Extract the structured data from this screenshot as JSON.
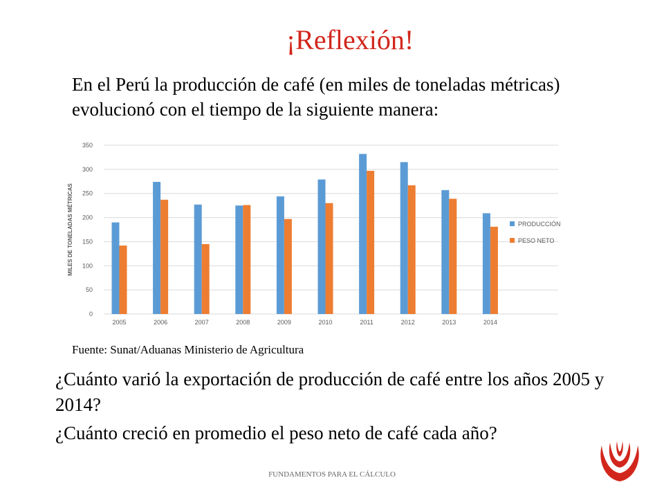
{
  "slide": {
    "title": "¡Reflexión!",
    "intro": "En el Perú la producción de café (en miles de toneladas métricas) evolucionó con el tiempo de la siguiente manera:",
    "source": "Fuente: Sunat/Aduanas Ministerio de Agricultura",
    "question1": "¿Cuánto varió la exportación de producción de café entre los años 2005 y 2014?",
    "question2": "¿Cuánto creció en promedio el peso neto de café cada año?",
    "footer": "FUNDAMENTOS PARA EL CÁLCULO"
  },
  "colors": {
    "title": "#d2261c",
    "produccion": "#5b9bd5",
    "peso_neto": "#ed7d31",
    "grid": "#d9d9d9",
    "logo": "#d2261c"
  },
  "chart_data": {
    "type": "bar",
    "categories": [
      "2005",
      "2006",
      "2007",
      "2008",
      "2009",
      "2010",
      "2011",
      "2012",
      "2013",
      "2014"
    ],
    "series": [
      {
        "name": "PRODUCCIÓN",
        "values": [
          190,
          274,
          227,
          225,
          244,
          279,
          332,
          315,
          257,
          209
        ]
      },
      {
        "name": "PESO NETO",
        "values": [
          142,
          237,
          145,
          226,
          197,
          230,
          297,
          267,
          239,
          181
        ]
      }
    ],
    "ylabel": "MILES DE TONELADAS MÉTRICAS",
    "yticks": [
      0,
      50,
      100,
      150,
      200,
      250,
      300,
      350
    ],
    "ylim": [
      0,
      350
    ],
    "grid": true,
    "legend": "right"
  }
}
